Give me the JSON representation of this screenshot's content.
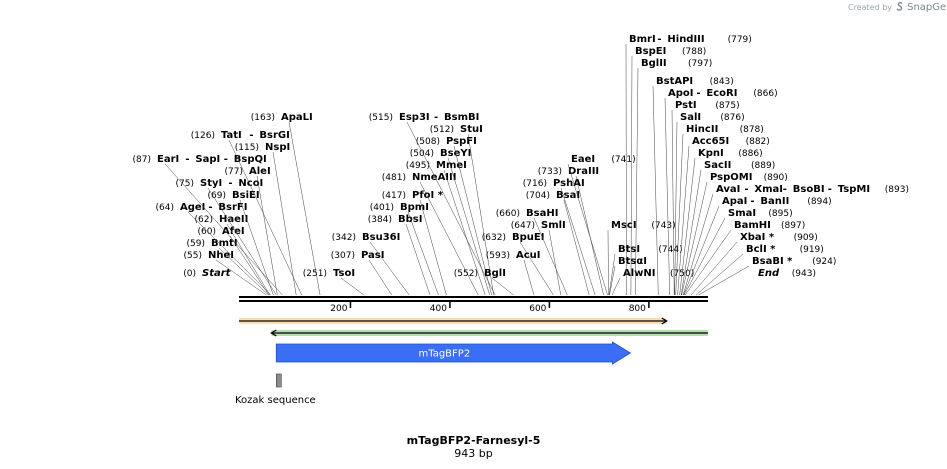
{
  "credit": {
    "prefix": "Created by",
    "brand": "SnapGene"
  },
  "plasmid": {
    "name": "mTagBFP2-Farnesyl-5",
    "length": "943 bp",
    "total_bp": 943
  },
  "axis": {
    "ticks": [
      {
        "bp": 200,
        "label": "200"
      },
      {
        "bp": 400,
        "label": "400"
      },
      {
        "bp": 600,
        "label": "600"
      },
      {
        "bp": 800,
        "label": "800"
      }
    ]
  },
  "features": [
    {
      "name": "orange-arrow",
      "label": "",
      "type": "primer-arrow",
      "start": 0,
      "end": 860,
      "color": "#f0a020",
      "direction": "forward"
    },
    {
      "name": "green-arrow",
      "label": "",
      "type": "primer-arrow",
      "start": 65,
      "end": 943,
      "color": "#2e9e1a",
      "direction": "reverse"
    },
    {
      "name": "mtagbfp2-arrow",
      "label": "mTagBFP2",
      "type": "cds",
      "start": 75,
      "end": 787,
      "color": "#3a6ef5",
      "direction": "forward"
    },
    {
      "name": "kozak-box",
      "label": "Kozak sequence",
      "type": "box",
      "start": 71,
      "end": 81,
      "color": "#8c8c8c"
    }
  ],
  "sites": [
    {
      "enzymes": [
        "Start"
      ],
      "pos": "(0)",
      "bp": 0,
      "italic": true
    },
    {
      "enzymes": [
        "NheI"
      ],
      "pos": "(55)",
      "bp": 55
    },
    {
      "enzymes": [
        "BmtI"
      ],
      "pos": "(59)",
      "bp": 59
    },
    {
      "enzymes": [
        "AfeI"
      ],
      "pos": "(60)",
      "bp": 60
    },
    {
      "enzymes": [
        "HaeII"
      ],
      "pos": "(62)",
      "bp": 62
    },
    {
      "enzymes": [
        "AgeI",
        "BsrFI"
      ],
      "pos": "(64)",
      "bp": 64
    },
    {
      "enzymes": [
        "BsiEI"
      ],
      "pos": "(69)",
      "bp": 69
    },
    {
      "enzymes": [
        "StyI",
        "NcoI"
      ],
      "pos": "(75)",
      "bp": 75
    },
    {
      "enzymes": [
        "AleI"
      ],
      "pos": "(77)",
      "bp": 77
    },
    {
      "enzymes": [
        "EarI",
        "SapI",
        "BspQI"
      ],
      "pos": "(87)",
      "bp": 87
    },
    {
      "enzymes": [
        "NspI"
      ],
      "pos": "(115)",
      "bp": 115
    },
    {
      "enzymes": [
        "TatI",
        "BsrGI"
      ],
      "pos": "(126)",
      "bp": 126
    },
    {
      "enzymes": [
        "ApaLI"
      ],
      "pos": "(163)",
      "bp": 163
    },
    {
      "enzymes": [
        "TsoI"
      ],
      "pos": "(251)",
      "bp": 251
    },
    {
      "enzymes": [
        "PasI"
      ],
      "pos": "(307)",
      "bp": 307
    },
    {
      "enzymes": [
        "Bsu36I"
      ],
      "pos": "(342)",
      "bp": 342
    },
    {
      "enzymes": [
        "BbsI"
      ],
      "pos": "(384)",
      "bp": 384
    },
    {
      "enzymes": [
        "BpmI"
      ],
      "pos": "(401)",
      "bp": 401
    },
    {
      "enzymes": [
        "PfoI *"
      ],
      "pos": "(417)",
      "bp": 417
    },
    {
      "enzymes": [
        "NmeAIII"
      ],
      "pos": "(481)",
      "bp": 481
    },
    {
      "enzymes": [
        "MmeI"
      ],
      "pos": "(495)",
      "bp": 495
    },
    {
      "enzymes": [
        "BseYI"
      ],
      "pos": "(504)",
      "bp": 504
    },
    {
      "enzymes": [
        "PspFI"
      ],
      "pos": "(508)",
      "bp": 508
    },
    {
      "enzymes": [
        "StuI"
      ],
      "pos": "(512)",
      "bp": 512
    },
    {
      "enzymes": [
        "Esp3I",
        "BsmBI"
      ],
      "pos": "(515)",
      "bp": 515
    },
    {
      "enzymes": [
        "BglI"
      ],
      "pos": "(552)",
      "bp": 552
    },
    {
      "enzymes": [
        "AcuI"
      ],
      "pos": "(593)",
      "bp": 593
    },
    {
      "enzymes": [
        "BpuEI"
      ],
      "pos": "(632)",
      "bp": 632
    },
    {
      "enzymes": [
        "SmlI"
      ],
      "pos": "(647)",
      "bp": 647
    },
    {
      "enzymes": [
        "BsaHI"
      ],
      "pos": "(660)",
      "bp": 660
    },
    {
      "enzymes": [
        "BsaI"
      ],
      "pos": "(704)",
      "bp": 704
    },
    {
      "enzymes": [
        "PshAI"
      ],
      "pos": "(716)",
      "bp": 716
    },
    {
      "enzymes": [
        "DraIII"
      ],
      "pos": "(733)",
      "bp": 733
    },
    {
      "enzymes": [
        "EaeI"
      ],
      "pos": "(741)",
      "bp": 741
    },
    {
      "enzymes": [
        "MscI"
      ],
      "pos": "(743)",
      "bp": 743
    },
    {
      "enzymes": [
        "BtsI"
      ],
      "pos": "(744)",
      "bp": 744
    },
    {
      "enzymes": [
        "BtsαI"
      ],
      "pos": "",
      "bp": 745
    },
    {
      "enzymes": [
        "AlwNI"
      ],
      "pos": "(750)",
      "bp": 750
    },
    {
      "enzymes": [
        "BmrI",
        "HindIII"
      ],
      "pos": "(779)",
      "bp": 779
    },
    {
      "enzymes": [
        "BspEI"
      ],
      "pos": "(788)",
      "bp": 788
    },
    {
      "enzymes": [
        "BglII"
      ],
      "pos": "(797)",
      "bp": 797
    },
    {
      "enzymes": [
        "BstAPI"
      ],
      "pos": "(843)",
      "bp": 843
    },
    {
      "enzymes": [
        "ApoI",
        "EcoRI"
      ],
      "pos": "(866)",
      "bp": 866
    },
    {
      "enzymes": [
        "PstI"
      ],
      "pos": "(875)",
      "bp": 875
    },
    {
      "enzymes": [
        "SalI"
      ],
      "pos": "(876)",
      "bp": 876
    },
    {
      "enzymes": [
        "HincII"
      ],
      "pos": "(878)",
      "bp": 878
    },
    {
      "enzymes": [
        "Acc65I"
      ],
      "pos": "(882)",
      "bp": 882
    },
    {
      "enzymes": [
        "KpnI"
      ],
      "pos": "(886)",
      "bp": 886
    },
    {
      "enzymes": [
        "SacII"
      ],
      "pos": "(889)",
      "bp": 889
    },
    {
      "enzymes": [
        "PspOMI"
      ],
      "pos": "(890)",
      "bp": 890
    },
    {
      "enzymes": [
        "AvaI",
        "XmaI",
        "BsoBI",
        "TspMI"
      ],
      "pos": "(893)",
      "bp": 893
    },
    {
      "enzymes": [
        "ApaI",
        "BanII"
      ],
      "pos": "(894)",
      "bp": 894
    },
    {
      "enzymes": [
        "SmaI"
      ],
      "pos": "(895)",
      "bp": 895
    },
    {
      "enzymes": [
        "BamHI"
      ],
      "pos": "(897)",
      "bp": 897
    },
    {
      "enzymes": [
        "XbaI *"
      ],
      "pos": "(909)",
      "bp": 909
    },
    {
      "enzymes": [
        "BclI *"
      ],
      "pos": "(919)",
      "bp": 919
    },
    {
      "enzymes": [
        "BsaBI *"
      ],
      "pos": "(924)",
      "bp": 924
    },
    {
      "enzymes": [
        "End"
      ],
      "pos": "(943)",
      "bp": 943,
      "italic": true
    }
  ]
}
